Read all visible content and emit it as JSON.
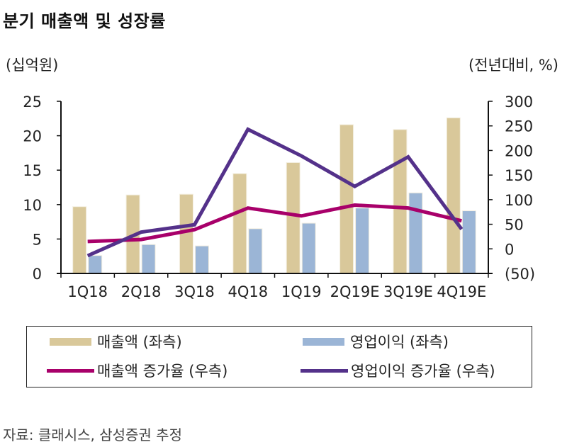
{
  "chart_data": {
    "type": "bar",
    "title": "분기 매출액 및 성장률",
    "ylabel_left": "(십억원)",
    "ylabel_right": "(전년대비, %)",
    "xlabel": "",
    "categories": [
      "1Q18",
      "2Q18",
      "3Q18",
      "4Q18",
      "1Q19",
      "2Q19E",
      "3Q19E",
      "4Q19E"
    ],
    "y_left": {
      "lim": [
        0,
        25
      ],
      "ticks": [
        0,
        5,
        10,
        15,
        20,
        25
      ],
      "tick_labels": [
        "0",
        "5",
        "10",
        "15",
        "20",
        "25"
      ]
    },
    "y_right": {
      "lim": [
        -50,
        300
      ],
      "ticks": [
        -50,
        0,
        50,
        100,
        150,
        200,
        250,
        300
      ],
      "tick_labels": [
        "(50)",
        "0",
        "50",
        "100",
        "150",
        "200",
        "250",
        "300"
      ]
    },
    "grid": false,
    "legend_position": "bottom",
    "series": [
      {
        "name": "매출액 (좌측)",
        "type": "bar",
        "axis": "left",
        "color": "#d9c89a",
        "values": [
          9.7,
          11.4,
          11.5,
          14.5,
          16.1,
          21.6,
          20.9,
          22.6
        ]
      },
      {
        "name": "영업이익 (좌측)",
        "type": "bar",
        "axis": "left",
        "color": "#9bb5d6",
        "values": [
          2.6,
          4.2,
          4.0,
          6.5,
          7.3,
          9.5,
          11.7,
          9.1
        ]
      },
      {
        "name": "매출액 증가율 (우측)",
        "type": "line",
        "axis": "right",
        "color": "#a8006a",
        "values": [
          15,
          19,
          39,
          83,
          67,
          89,
          83,
          57
        ]
      },
      {
        "name": "영업이익 증가율 (우측)",
        "type": "line",
        "axis": "right",
        "color": "#54318a",
        "values": [
          -14,
          34,
          49,
          243,
          189,
          127,
          187,
          40
        ]
      }
    ],
    "source": "자료: 클래시스, 삼성증권 추정"
  }
}
